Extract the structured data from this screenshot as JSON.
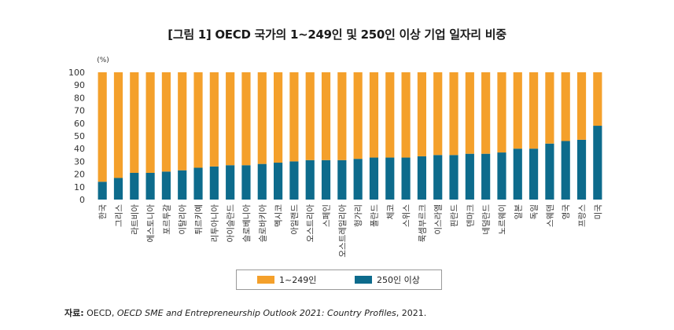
{
  "title": "[그림 1] OECD 국가의 1~249인 및 250인 이상 기업 일자리 비중",
  "chart_data": {
    "type": "bar",
    "stacked": true,
    "unit_label": "(%)",
    "ylim": [
      0,
      100
    ],
    "yticks": [
      0,
      10,
      20,
      30,
      40,
      50,
      60,
      70,
      80,
      90,
      100
    ],
    "grid": false,
    "legend_position": "bottom",
    "categories": [
      "한국",
      "그리스",
      "라트비아",
      "에스토니아",
      "포르투갈",
      "이탈리아",
      "튀르키예",
      "리투아니아",
      "아이슬란드",
      "슬로베니아",
      "슬로바키아",
      "멕시코",
      "아일랜드",
      "오스트리아",
      "스페인",
      "오스트레일리아",
      "헝가리",
      "폴란드",
      "체코",
      "스위스",
      "룩셈부르크",
      "이스라엘",
      "핀란드",
      "덴마크",
      "네덜란드",
      "노르웨이",
      "일본",
      "독일",
      "스웨덴",
      "영국",
      "프랑스",
      "미국"
    ],
    "series": [
      {
        "name": "1~249인",
        "color": "#f4a02b",
        "values": [
          86,
          83,
          79,
          79,
          78,
          77,
          75,
          74,
          73,
          73,
          72,
          71,
          70,
          69,
          69,
          69,
          68,
          67,
          67,
          67,
          66,
          65,
          65,
          64,
          64,
          63,
          60,
          60,
          56,
          54,
          53,
          42
        ]
      },
      {
        "name": "250인 이상",
        "color": "#0d6b8c",
        "values": [
          14,
          17,
          21,
          21,
          22,
          23,
          25,
          26,
          27,
          27,
          28,
          29,
          30,
          31,
          31,
          31,
          32,
          33,
          33,
          33,
          34,
          35,
          35,
          36,
          36,
          37,
          40,
          40,
          44,
          46,
          47,
          58
        ]
      }
    ]
  },
  "source": {
    "label": "자료:",
    "before": " OECD, ",
    "italic": "OECD SME and Entrepreneurship Outlook 2021: Country Profiles",
    "after": ", 2021."
  }
}
